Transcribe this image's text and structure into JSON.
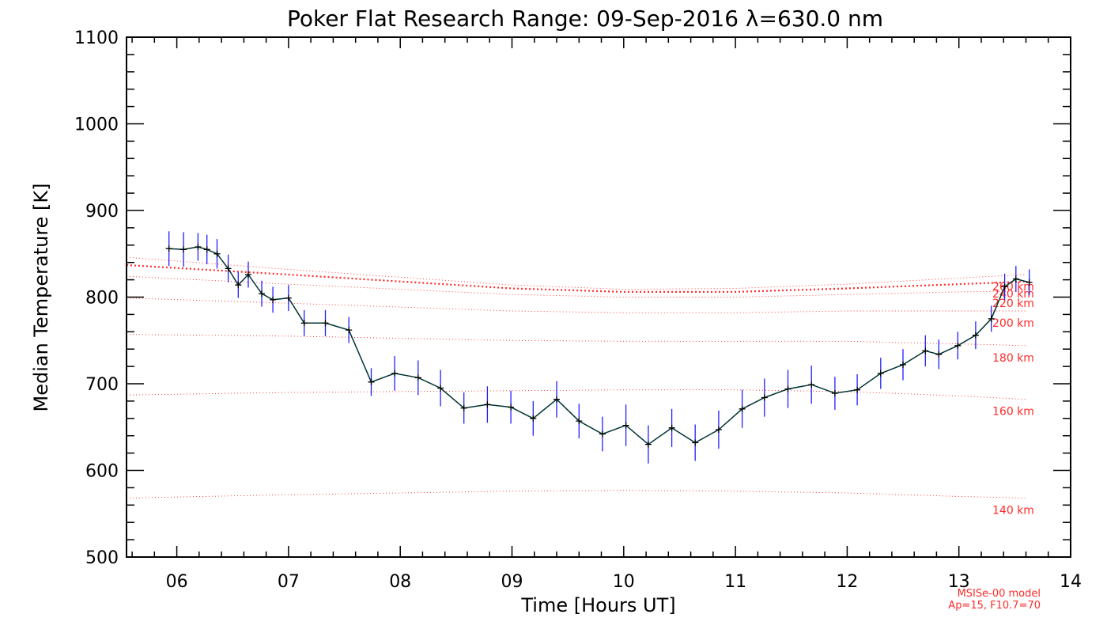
{
  "chart_data": {
    "type": "line",
    "title": "Poker Flat Research Range: 09-Sep-2016 λ=630.0 nm",
    "xlabel": "Time [Hours UT]",
    "ylabel": "Median Temperature [K]",
    "xlim": [
      5.55,
      14.0
    ],
    "ylim": [
      500,
      1100
    ],
    "x_ticks": [
      6,
      7,
      8,
      9,
      10,
      11,
      12,
      13,
      14
    ],
    "x_tick_labels": [
      "06",
      "07",
      "08",
      "09",
      "10",
      "11",
      "12",
      "13",
      "14"
    ],
    "y_ticks": [
      500,
      600,
      700,
      800,
      900,
      1000,
      1100
    ],
    "y_tick_labels": [
      "500",
      "600",
      "700",
      "800",
      "900",
      "1000",
      "1100"
    ],
    "series": [
      {
        "name": "Median Temperature",
        "color": "#003333",
        "error_color": "#2020ff",
        "x": [
          5.93,
          6.06,
          6.19,
          6.27,
          6.36,
          6.46,
          6.55,
          6.64,
          6.76,
          6.86,
          7.0,
          7.14,
          7.33,
          7.54,
          7.74,
          7.95,
          8.16,
          8.36,
          8.57,
          8.78,
          8.99,
          9.19,
          9.4,
          9.6,
          9.81,
          10.02,
          10.22,
          10.43,
          10.64,
          10.85,
          11.06,
          11.26,
          11.47,
          11.68,
          11.89,
          12.09,
          12.3,
          12.5,
          12.7,
          12.82,
          12.99,
          13.15,
          13.29,
          13.41,
          13.51,
          13.63
        ],
        "y": [
          856,
          855,
          858,
          855,
          850,
          833,
          814,
          826,
          804,
          797,
          799,
          770,
          770,
          762,
          702,
          712,
          707,
          695,
          672,
          676,
          673,
          660,
          682,
          657,
          642,
          652,
          630,
          649,
          632,
          647,
          671,
          684,
          694,
          699,
          689,
          693,
          712,
          722,
          738,
          734,
          744,
          756,
          775,
          812,
          821,
          817
        ],
        "err": [
          20,
          20,
          16,
          17,
          17,
          16,
          15,
          15,
          15,
          15,
          15,
          15,
          15,
          15,
          16,
          20,
          20,
          21,
          18,
          21,
          19,
          20,
          21,
          20,
          20,
          24,
          22,
          22,
          21,
          22,
          22,
          22,
          22,
          22,
          19,
          18,
          18,
          18,
          18,
          17,
          16,
          16,
          15,
          15,
          15,
          15
        ]
      }
    ],
    "model_curves": [
      {
        "label": "140 km",
        "x": [
          5.55,
          7.0,
          9.0,
          10.0,
          11.0,
          12.0,
          13.0,
          13.6
        ],
        "y": [
          568,
          572,
          576,
          577,
          576,
          574,
          570,
          568
        ]
      },
      {
        "label": "160 km",
        "x": [
          5.55,
          7.0,
          9.0,
          10.0,
          11.0,
          12.0,
          13.0,
          13.6
        ],
        "y": [
          687,
          690,
          692,
          693,
          693,
          691,
          686,
          682
        ]
      },
      {
        "label": "180 km",
        "x": [
          5.55,
          7.0,
          9.0,
          10.0,
          11.0,
          12.0,
          13.0,
          13.6
        ],
        "y": [
          757,
          755,
          750,
          749,
          749,
          749,
          746,
          744
        ]
      },
      {
        "label": "200 km",
        "x": [
          5.55,
          7.0,
          9.0,
          10.0,
          11.0,
          12.0,
          13.0,
          13.6
        ],
        "y": [
          799,
          793,
          784,
          782,
          782,
          784,
          784,
          784
        ]
      },
      {
        "label": "220 km",
        "x": [
          5.55,
          7.0,
          9.0,
          10.0,
          11.0,
          12.0,
          13.0,
          13.6
        ],
        "y": [
          824,
          815,
          803,
          800,
          800,
          803,
          806,
          807
        ]
      },
      {
        "label": "240 km",
        "x": [
          5.55,
          7.0,
          9.0,
          10.0,
          11.0,
          12.0,
          13.0,
          13.6
        ],
        "y": [
          837,
          826,
          810,
          806,
          806,
          810,
          815,
          818
        ]
      },
      {
        "label": "260 km",
        "x": [
          5.55,
          7.0,
          9.0,
          10.0,
          11.0,
          12.0,
          13.0,
          13.6
        ],
        "y": [
          846,
          832,
          814,
          809,
          810,
          815,
          822,
          826
        ]
      }
    ],
    "model_curve_color": "#ff2a2a",
    "emphasized_curve_label": "240 km",
    "model_note_lines": [
      "MSISe-00 model",
      "Ap=15, F10.7=70"
    ]
  }
}
